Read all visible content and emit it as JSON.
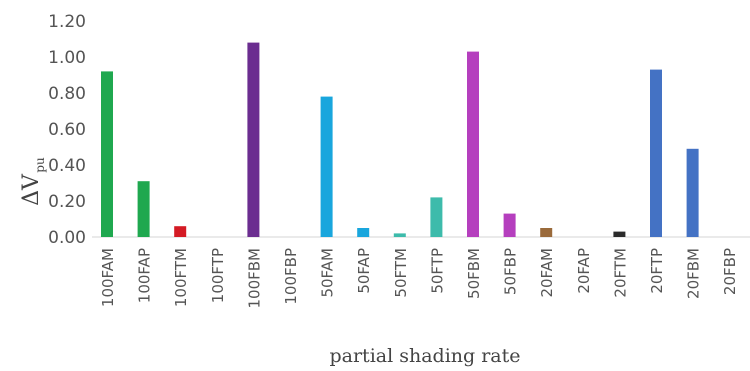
{
  "chart_data": {
    "type": "bar",
    "title": "",
    "xlabel": "partial shading rate",
    "ylabel": {
      "main": "ΔV",
      "sub": "pu"
    },
    "ylim": [
      0,
      1.2
    ],
    "y_ticks": [
      "0.00",
      "0.20",
      "0.40",
      "0.60",
      "0.80",
      "1.00",
      "1.20"
    ],
    "grid": false,
    "categories": [
      "100FAM",
      "100FAP",
      "100FTM",
      "100FTP",
      "100FBM",
      "100FBP",
      "50FAM",
      "50FAP",
      "50FTM",
      "50FTP",
      "50FBM",
      "50FBP",
      "20FAM",
      "20FAP",
      "20FTM",
      "20FTP",
      "20FBM",
      "20FBP"
    ],
    "values": [
      0.92,
      0.31,
      0.06,
      0.0,
      1.08,
      0.0,
      0.78,
      0.05,
      0.02,
      0.22,
      1.03,
      0.13,
      0.05,
      0.0,
      0.03,
      0.93,
      0.49,
      0.0
    ],
    "colors": [
      "#1fa84f",
      "#1fa84f",
      "#d41a24",
      "#1fa84f",
      "#6b2d90",
      "#6b2d90",
      "#19a6dd",
      "#19a6dd",
      "#3dbbab",
      "#3dbbab",
      "#b53fbe",
      "#b53fbe",
      "#9a6a3b",
      "#9a6a3b",
      "#2b2b2b",
      "#4472c4",
      "#4472c4",
      "#4472c4"
    ]
  }
}
